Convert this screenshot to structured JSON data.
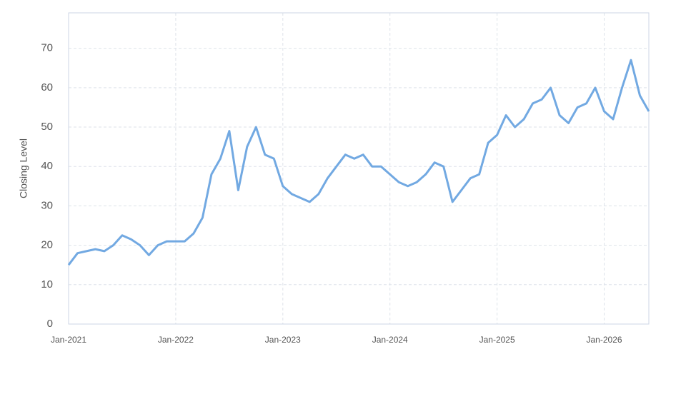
{
  "chart_data": {
    "type": "line",
    "y_label": "Closing Level",
    "x": [
      "2021-01",
      "2021-02",
      "2021-03",
      "2021-04",
      "2021-05",
      "2021-06",
      "2021-07",
      "2021-08",
      "2021-09",
      "2021-10",
      "2021-11",
      "2021-12",
      "2022-01",
      "2022-02",
      "2022-03",
      "2022-04",
      "2022-05",
      "2022-06",
      "2022-07",
      "2022-08",
      "2022-09",
      "2022-10",
      "2022-11",
      "2022-12",
      "2023-01",
      "2023-02",
      "2023-03",
      "2023-04",
      "2023-05",
      "2023-06",
      "2023-07",
      "2023-08",
      "2023-09",
      "2023-10",
      "2023-11",
      "2023-12",
      "2024-01",
      "2024-02",
      "2024-03",
      "2024-04",
      "2024-05",
      "2024-06",
      "2024-07",
      "2024-08",
      "2024-09",
      "2024-10",
      "2024-11",
      "2024-12",
      "2025-01",
      "2025-02",
      "2025-03",
      "2025-04",
      "2025-05",
      "2025-06",
      "2025-07",
      "2025-08",
      "2025-09",
      "2025-10",
      "2025-11",
      "2025-12",
      "2026-01",
      "2026-02",
      "2026-03",
      "2026-04",
      "2026-05",
      "2026-06"
    ],
    "series": [
      {
        "name": "Closing Level",
        "color": "#72a9e2",
        "values": [
          15,
          18,
          18.5,
          19,
          18.5,
          20,
          22.5,
          21.5,
          20,
          17.5,
          20,
          21,
          21,
          21,
          23,
          27,
          38,
          42,
          49,
          34,
          45,
          50,
          43,
          42,
          35,
          33,
          32,
          31,
          33,
          37,
          40,
          43,
          42,
          43,
          40,
          40,
          38,
          36,
          35,
          36,
          38,
          41,
          40,
          31,
          34,
          37,
          38,
          46,
          48,
          53,
          50,
          52,
          56,
          57,
          60,
          53,
          51,
          55,
          56,
          60,
          54,
          52,
          60,
          67,
          58,
          54
        ]
      }
    ],
    "xlim": [
      "2021-01",
      "2026-06"
    ],
    "xticks": [
      {
        "value": "2021-01",
        "label": "Jan-2021"
      },
      {
        "value": "2022-01",
        "label": "Jan-2022"
      },
      {
        "value": "2023-01",
        "label": "Jan-2023"
      },
      {
        "value": "2024-01",
        "label": "Jan-2024"
      },
      {
        "value": "2025-01",
        "label": "Jan-2025"
      },
      {
        "value": "2026-01",
        "label": "Jan-2026"
      }
    ],
    "ylim": [
      0,
      79
    ],
    "yticks": [
      0,
      10,
      20,
      30,
      40,
      50,
      60,
      70
    ],
    "grid": true
  }
}
